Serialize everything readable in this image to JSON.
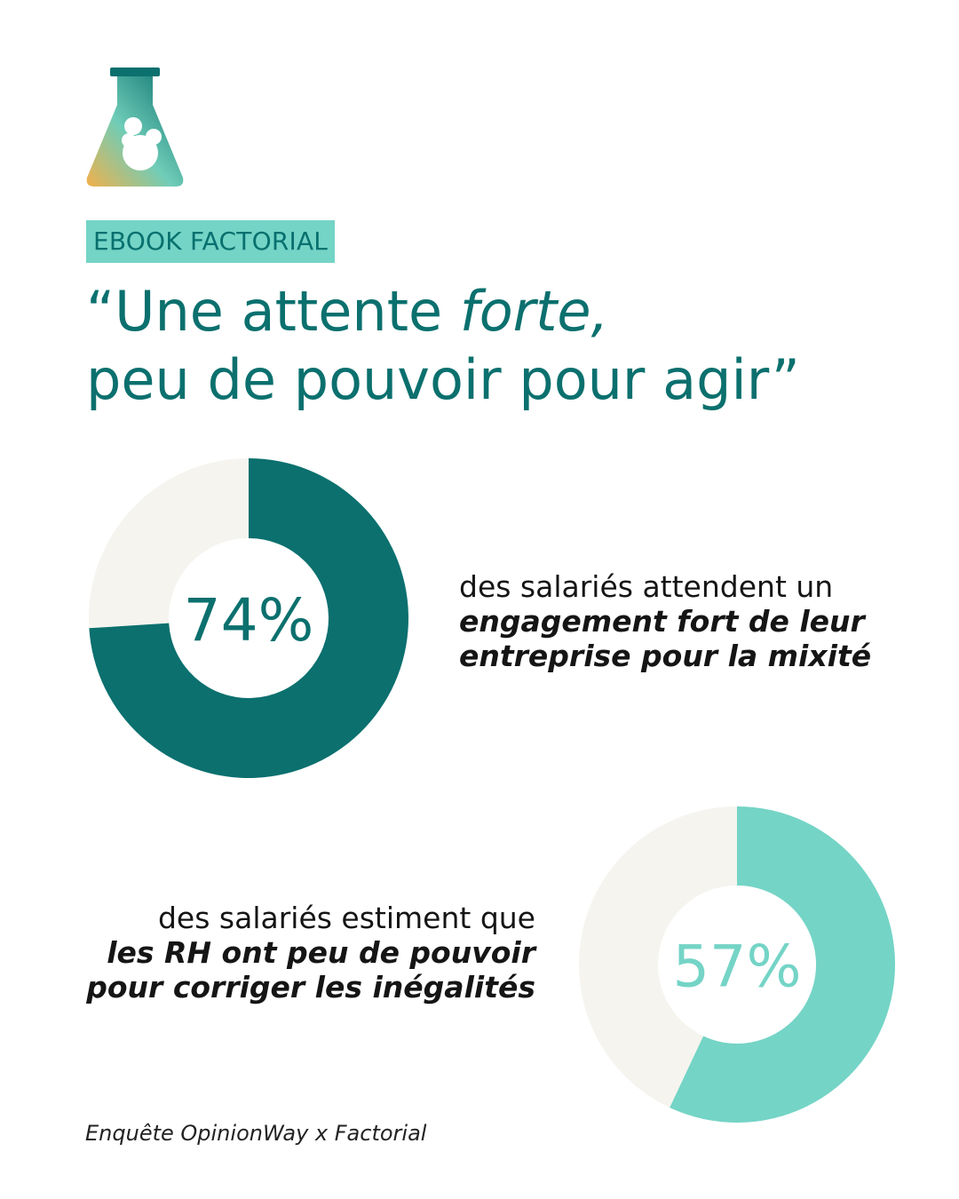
{
  "colors": {
    "brand_dark": "#0b706e",
    "brand_light": "#74d4c6",
    "ring_bg": "#f5f4ef",
    "text": "#151515"
  },
  "logo": {
    "icon": "flask-ampersand-icon"
  },
  "tag": "EBOOK FACTORIAL",
  "headline": {
    "line1_prefix": "“Une attente ",
    "line1_emphasis": "forte,",
    "line2": "peu de pouvoir pour agir”"
  },
  "stats": [
    {
      "plain": "des salariés attendent un",
      "bold_line1": "engagement fort de leur",
      "bold_line2": "entreprise pour la mixité"
    },
    {
      "plain": "des salariés estiment que",
      "bold_line1": "les RH ont peu de pouvoir",
      "bold_line2": "pour corriger les inégalités"
    }
  ],
  "source": "Enquête OpinionWay x Factorial",
  "chart_data": [
    {
      "type": "pie",
      "style": "donut",
      "value": 74,
      "center_label": "74%",
      "color": "#0b706e",
      "remainder_color": "#f5f4ef"
    },
    {
      "type": "pie",
      "style": "donut",
      "value": 57,
      "center_label": "57%",
      "color": "#74d4c6",
      "remainder_color": "#f5f4ef"
    }
  ]
}
